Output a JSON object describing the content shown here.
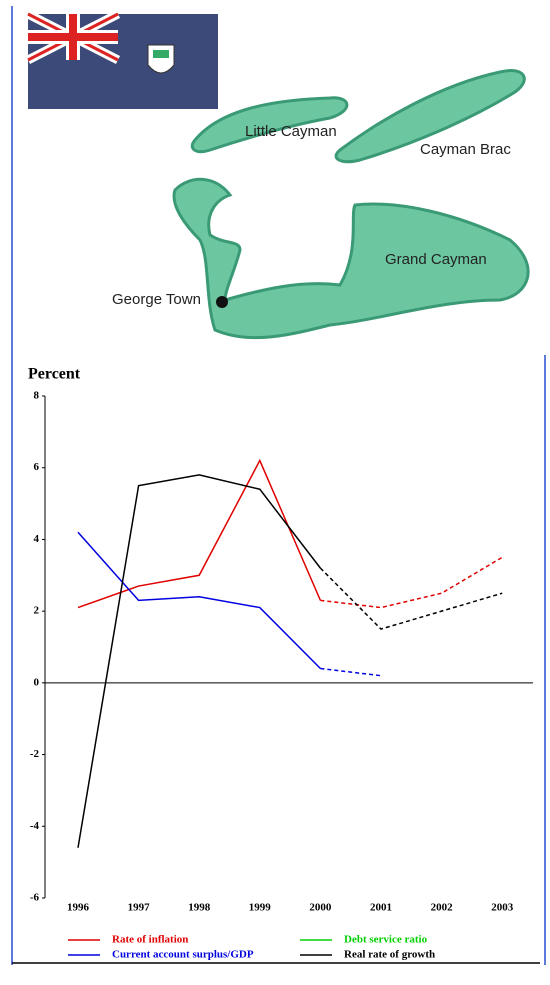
{
  "map": {
    "labels": [
      "Little Cayman",
      "Cayman Brac",
      "Grand Cayman",
      "George Town"
    ]
  },
  "chart_data": {
    "type": "line",
    "y_label": "Percent",
    "categories": [
      "1996",
      "1997",
      "1998",
      "1999",
      "2000",
      "2001",
      "2002",
      "2003"
    ],
    "dashed_from": "2000",
    "series": [
      {
        "name": "Rate of inflation",
        "color": "#e00000",
        "values": [
          2.1,
          2.7,
          3.0,
          6.2,
          2.3,
          2.1,
          2.5,
          3.5
        ]
      },
      {
        "name": "Debt service ratio",
        "color": "#00d000",
        "values": [
          null,
          null,
          null,
          null,
          null,
          null,
          null,
          null
        ]
      },
      {
        "name": "Current account surplus/GDP",
        "color": "#0000e0",
        "values": [
          4.2,
          2.3,
          2.4,
          2.1,
          0.4,
          0.2,
          null,
          null
        ]
      },
      {
        "name": "Real rate of growth",
        "color": "#000000",
        "values": [
          -4.6,
          5.5,
          5.8,
          5.4,
          3.2,
          1.5,
          2.0,
          2.5
        ]
      }
    ],
    "ylim": [
      -6,
      8
    ],
    "yticks": [
      -6,
      -4,
      -2,
      0,
      2,
      4,
      6,
      8
    ],
    "grid": false
  }
}
